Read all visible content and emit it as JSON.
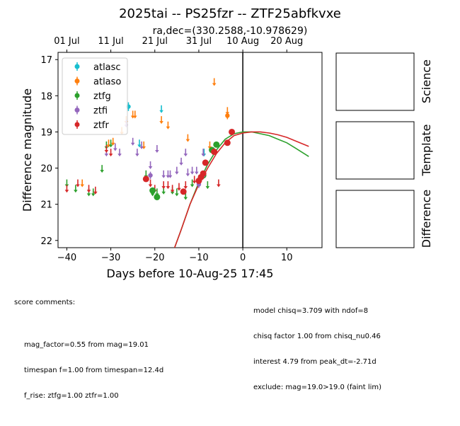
{
  "chart_data": {
    "type": "scatter",
    "title": "2025tai -- PS25fzr -- ZTF25abfkvxe",
    "subtitle": "ra,dec=(330.2588,-10.978629)",
    "xlabel": "Days before 10-Aug-25 17:45",
    "ylabel": "Difference magnitude",
    "xlim": [
      -42,
      18
    ],
    "ylim": [
      22.2,
      16.8
    ],
    "x_ticks": [
      -40,
      -30,
      -20,
      -10,
      0,
      10
    ],
    "y_ticks": [
      17,
      18,
      19,
      20,
      21,
      22
    ],
    "top_ticks": [
      {
        "x": -40,
        "label": "01 Jul"
      },
      {
        "x": -30,
        "label": "11 Jul"
      },
      {
        "x": -20,
        "label": "21 Jul"
      },
      {
        "x": -10,
        "label": "31 Jul"
      },
      {
        "x": 0,
        "label": "10 Aug"
      },
      {
        "x": 10,
        "label": "20 Aug"
      }
    ],
    "vline_x": 0,
    "legend_position": "upper left",
    "series": [
      {
        "name": "atlasc",
        "color": "#17becf",
        "limits": [
          [
            -23.5,
            19.35
          ],
          [
            -18.5,
            18.4
          ],
          [
            -8.8,
            19.6
          ]
        ],
        "detections": [
          [
            -26,
            18.3,
            0.12
          ]
        ]
      },
      {
        "name": "atlaso",
        "color": "#ff7f0e",
        "limits": [
          [
            -36.5,
            20.45
          ],
          [
            -30.5,
            19.35
          ],
          [
            -29.5,
            19.3
          ],
          [
            -27.5,
            19.0
          ],
          [
            -26.5,
            18.7
          ],
          [
            -25,
            18.55
          ],
          [
            -24.5,
            18.55
          ],
          [
            -22.5,
            19.4
          ],
          [
            -18.5,
            18.7
          ],
          [
            -17,
            18.85
          ],
          [
            -12.5,
            19.2
          ],
          [
            -7.5,
            19.4
          ],
          [
            -6.5,
            17.65
          ],
          [
            -3.5,
            18.45
          ]
        ],
        "detections": [
          [
            -3.5,
            18.55,
            0.1
          ]
        ]
      },
      {
        "name": "ztfg",
        "color": "#2ca02c",
        "limits": [
          [
            -40,
            20.45
          ],
          [
            -38,
            20.6
          ],
          [
            -35,
            20.7
          ],
          [
            -34,
            20.7
          ],
          [
            -32,
            20.05
          ],
          [
            -31,
            19.4
          ],
          [
            -30,
            19.35
          ],
          [
            -22,
            20.2
          ],
          [
            -20.5,
            20.7
          ],
          [
            -19.5,
            20.7
          ],
          [
            -18,
            20.65
          ],
          [
            -16,
            20.65
          ],
          [
            -15,
            20.7
          ],
          [
            -13,
            20.8
          ],
          [
            -11.5,
            20.45
          ],
          [
            -10,
            20.4
          ],
          [
            -8,
            20.5
          ]
        ],
        "detections": [
          [
            -20.5,
            20.62,
            0.08
          ],
          [
            -19.5,
            20.8,
            0.08
          ],
          [
            -9,
            20.2,
            0.1
          ],
          [
            -7,
            19.5,
            0.08
          ],
          [
            -6,
            19.35,
            0.07
          ]
        ]
      },
      {
        "name": "ztfi",
        "color": "#9467bd",
        "limits": [
          [
            -31,
            19.6
          ],
          [
            -29,
            19.45
          ],
          [
            -28,
            19.6
          ],
          [
            -26.5,
            18.8
          ],
          [
            -25,
            19.3
          ],
          [
            -24,
            19.6
          ],
          [
            -23,
            19.4
          ],
          [
            -21,
            19.95
          ],
          [
            -19.5,
            19.5
          ],
          [
            -18,
            20.2
          ],
          [
            -17,
            20.2
          ],
          [
            -16.5,
            20.2
          ],
          [
            -15,
            20.1
          ],
          [
            -14,
            19.85
          ],
          [
            -13,
            19.6
          ],
          [
            -12.5,
            20.15
          ],
          [
            -11.5,
            20.1
          ],
          [
            -10.5,
            20.1
          ],
          [
            -9,
            19.6
          ]
        ],
        "detections": [
          [
            -21,
            20.2,
            0.1
          ],
          [
            -10,
            20.45,
            0.1
          ],
          [
            -9,
            20.2,
            0.08
          ]
        ]
      },
      {
        "name": "ztfr",
        "color": "#d62728",
        "limits": [
          [
            -40,
            20.6
          ],
          [
            -37.5,
            20.45
          ],
          [
            -35,
            20.6
          ],
          [
            -33.5,
            20.65
          ],
          [
            -31,
            19.5
          ],
          [
            -30,
            19.6
          ],
          [
            -21,
            20.45
          ],
          [
            -20,
            20.6
          ],
          [
            -18,
            20.5
          ],
          [
            -17,
            20.5
          ],
          [
            -16,
            20.6
          ],
          [
            -14.5,
            20.55
          ],
          [
            -13,
            20.5
          ],
          [
            -11,
            20.35
          ],
          [
            -5.5,
            20.45
          ]
        ],
        "detections": [
          [
            -22,
            20.3,
            0.06
          ],
          [
            -13.5,
            20.65,
            0.08
          ],
          [
            -10,
            20.35,
            0.06
          ],
          [
            -9.5,
            20.25,
            0.06
          ],
          [
            -9,
            20.15,
            0.06
          ],
          [
            -8.5,
            19.85,
            0.05
          ],
          [
            -6.5,
            19.55,
            0.05
          ],
          [
            -3.5,
            19.3,
            0.05
          ],
          [
            -2.5,
            19.0,
            0.05
          ]
        ]
      }
    ],
    "model_curves": [
      {
        "name": "ztfg model",
        "color": "#2ca02c",
        "points": [
          [
            -15.5,
            22.2
          ],
          [
            -14,
            21.7
          ],
          [
            -12,
            21.0
          ],
          [
            -10,
            20.4
          ],
          [
            -8,
            19.9
          ],
          [
            -6,
            19.5
          ],
          [
            -4,
            19.2
          ],
          [
            -2,
            19.05
          ],
          [
            0,
            19.0
          ],
          [
            2,
            19.0
          ],
          [
            4,
            19.05
          ],
          [
            6,
            19.1
          ],
          [
            8,
            19.2
          ],
          [
            10,
            19.3
          ],
          [
            12,
            19.45
          ],
          [
            15,
            19.68
          ]
        ]
      },
      {
        "name": "ztfr model",
        "color": "#d62728",
        "points": [
          [
            -15.5,
            22.2
          ],
          [
            -14,
            21.7
          ],
          [
            -12,
            21.0
          ],
          [
            -10,
            20.45
          ],
          [
            -8,
            20.0
          ],
          [
            -6,
            19.6
          ],
          [
            -4,
            19.3
          ],
          [
            -2,
            19.1
          ],
          [
            0,
            19.03
          ],
          [
            2,
            19.0
          ],
          [
            4,
            19.0
          ],
          [
            6,
            19.03
          ],
          [
            8,
            19.08
          ],
          [
            10,
            19.15
          ],
          [
            12,
            19.25
          ],
          [
            15,
            19.4
          ]
        ]
      }
    ]
  },
  "side_panels": [
    {
      "label": "Science"
    },
    {
      "label": "Template"
    },
    {
      "label": "Difference"
    }
  ],
  "score_comments": {
    "header": "score comments:",
    "lines": [
      "mag_factor=0.55 from mag=19.01",
      "timespan f=1.00 from timespan=12.4d",
      "f_rise: ztfg=1.00 ztfr=1.00"
    ]
  },
  "model_info": {
    "lines": [
      "model chisq=3.709 with ndof=8",
      "chisq factor 1.00 from chisq_nu0.46",
      "interest 4.79 from peak_dt=-2.71d",
      "exclude: mag=19.0>19.0 (faint lim)"
    ]
  }
}
